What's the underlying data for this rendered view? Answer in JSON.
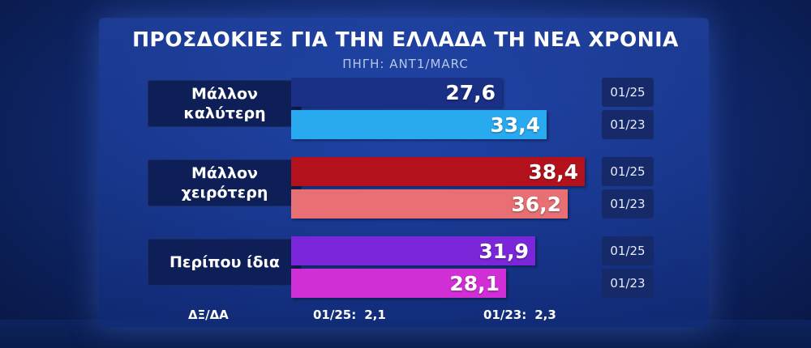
{
  "chart_data": {
    "type": "bar",
    "orientation": "horizontal",
    "title": "ΠΡΟΣΔΟΚΙΕΣ ΓΙΑ ΤΗΝ ΕΛΛΑΔΑ ΤΗ ΝΕΑ ΧΡΟΝΙΑ",
    "subtitle": "ΠΗΓΗ: ΑΝΤ1/MARC",
    "xlim": [
      0,
      48
    ],
    "periods": [
      "01/25",
      "01/23"
    ],
    "categories": [
      {
        "label": "Μάλλον\nκαλύτερη",
        "bars": [
          {
            "period": "01/25",
            "value": 27.6,
            "display": "27,6",
            "color": "#1a2f86"
          },
          {
            "period": "01/23",
            "value": 33.4,
            "display": "33,4",
            "color": "#29aaf0"
          }
        ]
      },
      {
        "label": "Μάλλον\nχειρότερη",
        "bars": [
          {
            "period": "01/25",
            "value": 38.4,
            "display": "38,4",
            "color": "#b3121c"
          },
          {
            "period": "01/23",
            "value": 36.2,
            "display": "36,2",
            "color": "#e86f74"
          }
        ]
      },
      {
        "label": "Περίπου  ίδια",
        "bars": [
          {
            "period": "01/25",
            "value": 31.9,
            "display": "31,9",
            "color": "#7b26d8"
          },
          {
            "period": "01/23",
            "value": 28.1,
            "display": "28,1",
            "color": "#d12fd6"
          }
        ]
      }
    ],
    "footer": {
      "label": "ΔΞ/ΔΑ",
      "items": [
        {
          "period": "01/25:",
          "value": "2,1"
        },
        {
          "period": "01/23:",
          "value": "2,3"
        }
      ]
    }
  }
}
